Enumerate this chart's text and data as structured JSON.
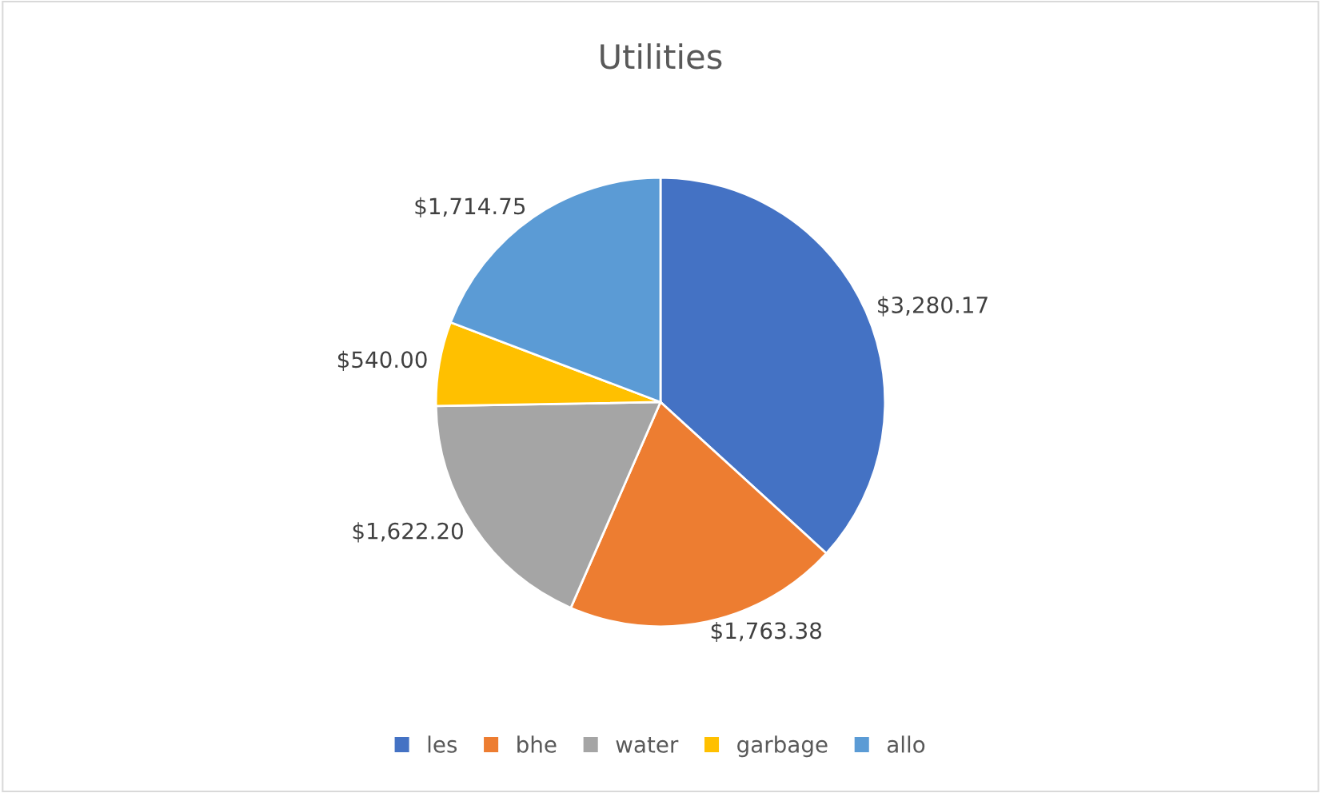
{
  "chart_data": {
    "type": "pie",
    "title": "Utilities",
    "categories": [
      "les",
      "bhe",
      "water",
      "garbage",
      "allo"
    ],
    "values": [
      3280.17,
      1763.38,
      1622.2,
      540.0,
      1714.75
    ],
    "value_labels": [
      "$3,280.17",
      "$1,763.38",
      "$1,622.20",
      "$540.00",
      "$1,714.75"
    ],
    "colors": [
      "#4472c4",
      "#ed7d31",
      "#a5a5a5",
      "#ffc000",
      "#5b9bd5"
    ],
    "legend": "bottom"
  }
}
